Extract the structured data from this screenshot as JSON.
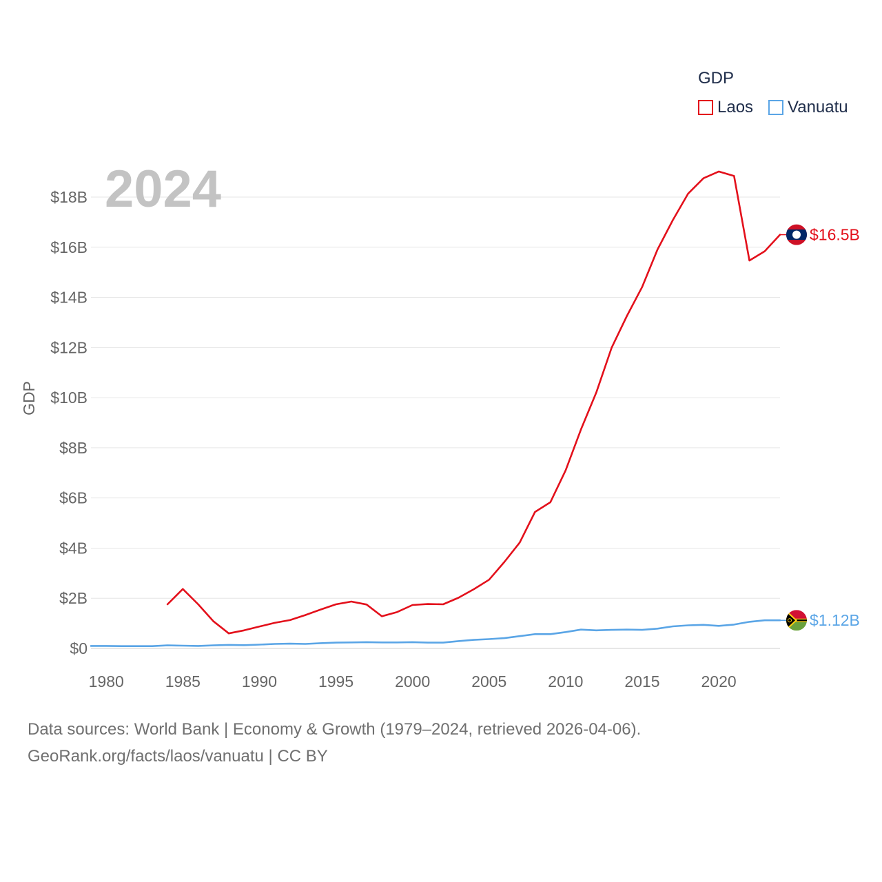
{
  "legend": {
    "title": "GDP",
    "items": [
      {
        "name": "Laos",
        "color": "#e3101b"
      },
      {
        "name": "Vanuatu",
        "color": "#5aa5e6"
      }
    ]
  },
  "year_label": "2024",
  "source": {
    "line1": "Data sources: World Bank | Economy & Growth (1979–2024, retrieved 2026-04-06).",
    "line2": "GeoRank.org/facts/laos/vanuatu | CC BY"
  },
  "chart_data": {
    "type": "line",
    "title": "",
    "xlabel": "",
    "ylabel": "GDP",
    "xlim": [
      1979,
      2024
    ],
    "ylim": [
      0,
      18
    ],
    "x_ticks": [
      1980,
      1985,
      1990,
      1995,
      2000,
      2005,
      2010,
      2015,
      2020
    ],
    "y_ticks": [
      0,
      2,
      4,
      6,
      8,
      10,
      12,
      14,
      16,
      18
    ],
    "y_tick_labels": [
      "$0",
      "$2B",
      "$4B",
      "$6B",
      "$8B",
      "$10B",
      "$12B",
      "$14B",
      "$16B",
      "$18B"
    ],
    "grid": true,
    "series": [
      {
        "name": "Laos",
        "color": "#e3101b",
        "end_label": "$16.5B",
        "points": [
          [
            1984,
            1.76
          ],
          [
            1985,
            2.37
          ],
          [
            1986,
            1.76
          ],
          [
            1987,
            1.08
          ],
          [
            1988,
            0.6
          ],
          [
            1989,
            0.72
          ],
          [
            1990,
            0.87
          ],
          [
            1991,
            1.02
          ],
          [
            1992,
            1.13
          ],
          [
            1993,
            1.33
          ],
          [
            1994,
            1.55
          ],
          [
            1995,
            1.76
          ],
          [
            1996,
            1.87
          ],
          [
            1997,
            1.75
          ],
          [
            1998,
            1.28
          ],
          [
            1999,
            1.45
          ],
          [
            2000,
            1.73
          ],
          [
            2001,
            1.77
          ],
          [
            2002,
            1.76
          ],
          [
            2003,
            2.02
          ],
          [
            2004,
            2.36
          ],
          [
            2005,
            2.74
          ],
          [
            2006,
            3.45
          ],
          [
            2007,
            4.22
          ],
          [
            2008,
            5.44
          ],
          [
            2009,
            5.83
          ],
          [
            2010,
            7.1
          ],
          [
            2011,
            8.73
          ],
          [
            2012,
            10.2
          ],
          [
            2013,
            11.99
          ],
          [
            2014,
            13.26
          ],
          [
            2015,
            14.42
          ],
          [
            2016,
            15.91
          ],
          [
            2017,
            17.08
          ],
          [
            2018,
            18.14
          ],
          [
            2019,
            18.75
          ],
          [
            2020,
            19.02
          ],
          [
            2021,
            18.84
          ],
          [
            2022,
            15.47
          ],
          [
            2023,
            15.84
          ],
          [
            2024,
            16.5
          ]
        ]
      },
      {
        "name": "Vanuatu",
        "color": "#5aa5e6",
        "end_label": "$1.12B",
        "points": [
          [
            1979,
            0.1
          ],
          [
            1980,
            0.1
          ],
          [
            1981,
            0.09
          ],
          [
            1982,
            0.09
          ],
          [
            1983,
            0.09
          ],
          [
            1984,
            0.12
          ],
          [
            1985,
            0.11
          ],
          [
            1986,
            0.1
          ],
          [
            1987,
            0.12
          ],
          [
            1988,
            0.14
          ],
          [
            1989,
            0.13
          ],
          [
            1990,
            0.15
          ],
          [
            1991,
            0.18
          ],
          [
            1992,
            0.19
          ],
          [
            1993,
            0.18
          ],
          [
            1994,
            0.21
          ],
          [
            1995,
            0.23
          ],
          [
            1996,
            0.24
          ],
          [
            1997,
            0.25
          ],
          [
            1998,
            0.24
          ],
          [
            1999,
            0.24
          ],
          [
            2000,
            0.25
          ],
          [
            2001,
            0.23
          ],
          [
            2002,
            0.23
          ],
          [
            2003,
            0.29
          ],
          [
            2004,
            0.34
          ],
          [
            2005,
            0.37
          ],
          [
            2006,
            0.41
          ],
          [
            2007,
            0.49
          ],
          [
            2008,
            0.57
          ],
          [
            2009,
            0.57
          ],
          [
            2010,
            0.65
          ],
          [
            2011,
            0.75
          ],
          [
            2012,
            0.72
          ],
          [
            2013,
            0.74
          ],
          [
            2014,
            0.75
          ],
          [
            2015,
            0.74
          ],
          [
            2016,
            0.79
          ],
          [
            2017,
            0.88
          ],
          [
            2018,
            0.92
          ],
          [
            2019,
            0.94
          ],
          [
            2020,
            0.9
          ],
          [
            2021,
            0.95
          ],
          [
            2022,
            1.06
          ],
          [
            2023,
            1.12
          ],
          [
            2024,
            1.12
          ]
        ]
      }
    ]
  }
}
